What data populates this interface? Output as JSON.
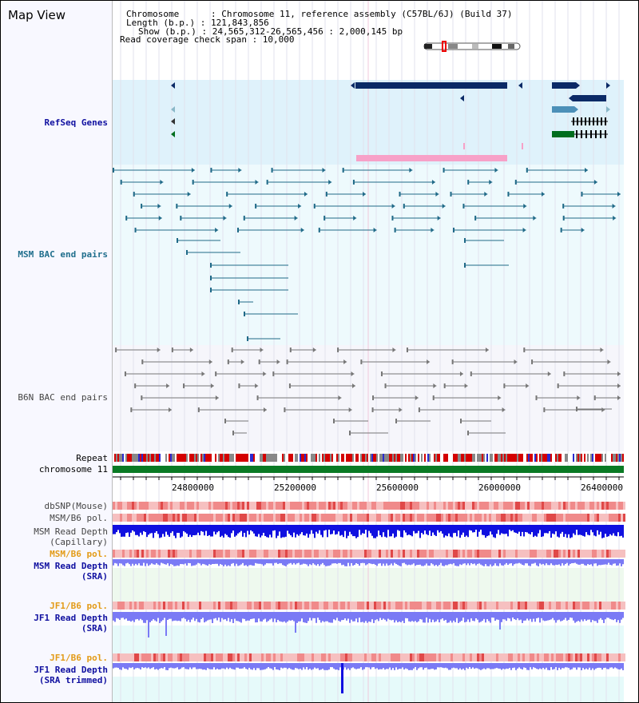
{
  "header": {
    "title": "Map View",
    "info_lines": [
      "Chromosome      : Chromosome 11, reference assembly (C57BL/6J) (Build 37)",
      "Length (b.p.) : 121,843,856",
      "Show (b.p.) : 24,565,312-26,565,456 : 2,000,145 bp",
      "Read coverage check span : 10,000"
    ]
  },
  "tracks": {
    "refseq": "RefSeq Genes",
    "msm_bac": "MSM BAC end pairs",
    "b6n_bac": "B6N BAC end pairs",
    "repeat": "Repeat",
    "chromosome": "chromosome 11",
    "dbsnp": "dbSNP(Mouse)",
    "msm_b6_pol_1": "MSM/B6 pol.",
    "msm_depth_cap": "MSM Read Depth\n(Capillary)",
    "msm_b6_pol_2": "MSM/B6 pol.",
    "msm_depth_sra": "MSM Read Depth\n(SRA)",
    "jf1_b6_pol_1": "JF1/B6 pol.",
    "jf1_depth_sra": "JF1 Read Depth\n(SRA)",
    "jf1_b6_pol_2": "JF1/B6 pol.",
    "jf1_depth_trim": "JF1 Read Depth\n(SRA trimmed)"
  },
  "axis": {
    "ticks": [
      "24800000",
      "25200000",
      "25600000",
      "26000000",
      "26400000"
    ]
  },
  "colors": {
    "gene_dark": "#0b2a66",
    "gene_light": "#4c90b8",
    "gene_green": "#006e1e",
    "gene_pink": "#f7a1c8",
    "msm_bac": "#206a88",
    "b6n_bac": "#777777",
    "repeat_red": "#d40000",
    "chromosome_green": "#0a7a24",
    "depth_blue": "#1010e0",
    "depth_light": "#7a7af5",
    "pol_pink": "#f08a8a"
  }
}
